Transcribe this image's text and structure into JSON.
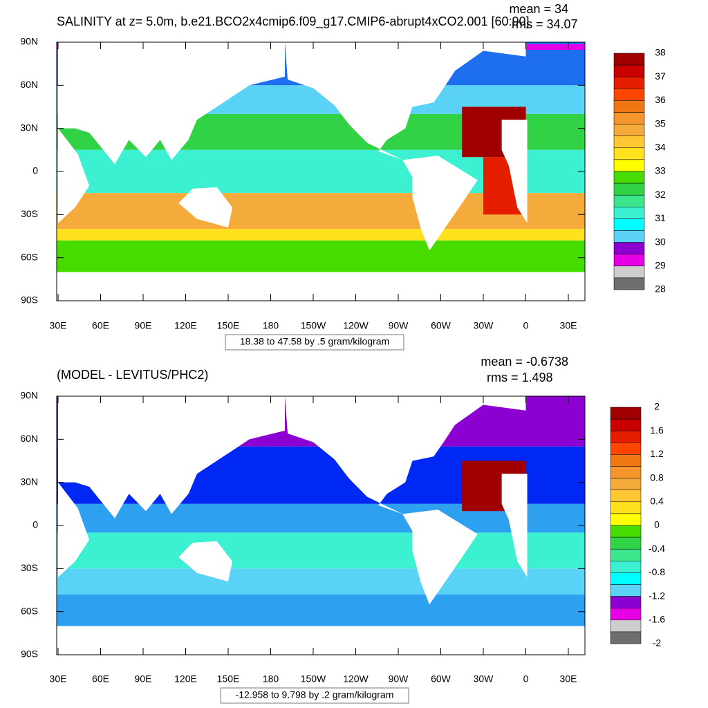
{
  "panels": [
    {
      "title": "SALINITY at z=   5.0m, b.e21.BCO2x4cmip6.f09_g17.CMIP6-abrupt4xCO2.001 [60:90]",
      "mean": "mean = 34",
      "rms": "rms = 34.07",
      "lat_labels": [
        "90N",
        "60N",
        "30N",
        "0",
        "30S",
        "60S",
        "90S"
      ],
      "lon_labels": [
        "30E",
        "60E",
        "90E",
        "120E",
        "150E",
        "180",
        "150W",
        "120W",
        "90W",
        "60W",
        "30W",
        "0",
        "30E"
      ],
      "colorbar": {
        "colors": [
          "#a00000",
          "#c80000",
          "#e61e00",
          "#ff4600",
          "#f07814",
          "#f5962d",
          "#f5aa3c",
          "#ffc832",
          "#ffe11e",
          "#ffff00",
          "#46dc00",
          "#32d246",
          "#3ce68c",
          "#3cf0d2",
          "#00ffff",
          "#5ad2f5",
          "#2da0f0",
          "#1e6ef0",
          "#0028f5",
          "#0000d2"
        ],
        "extra_colors": [
          "#8c00d2",
          "#e600e6",
          "#cdcdcd",
          "#6e6e6e"
        ],
        "labels": [
          "38",
          "37",
          "36",
          "35",
          "34",
          "33",
          "32",
          "31",
          "30",
          "29",
          "28"
        ]
      },
      "caption": "18.38 to 47.58 by .5 gram/kilogram"
    },
    {
      "title": "(MODEL - LEVITUS/PHC2)",
      "mean": "mean = -0.6738",
      "rms": "rms = 1.498",
      "lat_labels": [
        "90N",
        "60N",
        "30N",
        "0",
        "30S",
        "60S",
        "90S"
      ],
      "lon_labels": [
        "30E",
        "60E",
        "90E",
        "120E",
        "150E",
        "180",
        "150W",
        "120W",
        "90W",
        "60W",
        "30W",
        "0",
        "30E"
      ],
      "colorbar": {
        "colors": [
          "#a00000",
          "#c80000",
          "#e61e00",
          "#ff4600",
          "#f07814",
          "#f5962d",
          "#f5aa3c",
          "#ffc832",
          "#ffe11e",
          "#ffff00",
          "#46dc00",
          "#32d246",
          "#3ce68c",
          "#3cf0d2",
          "#00ffff",
          "#5ad2f5",
          "#2da0f0",
          "#1e6ef0",
          "#0028f5",
          "#0000d2"
        ],
        "extra_colors": [
          "#8c00d2",
          "#e600e6",
          "#cdcdcd",
          "#6e6e6e"
        ],
        "labels": [
          "2",
          "1.6",
          "1.2",
          "0.8",
          "0.4",
          "0",
          "-0.4",
          "-0.8",
          "-1.2",
          "-1.6",
          "-2"
        ]
      },
      "caption": "-12.958 to 9.798 by .2 gram/kilogram"
    }
  ]
}
